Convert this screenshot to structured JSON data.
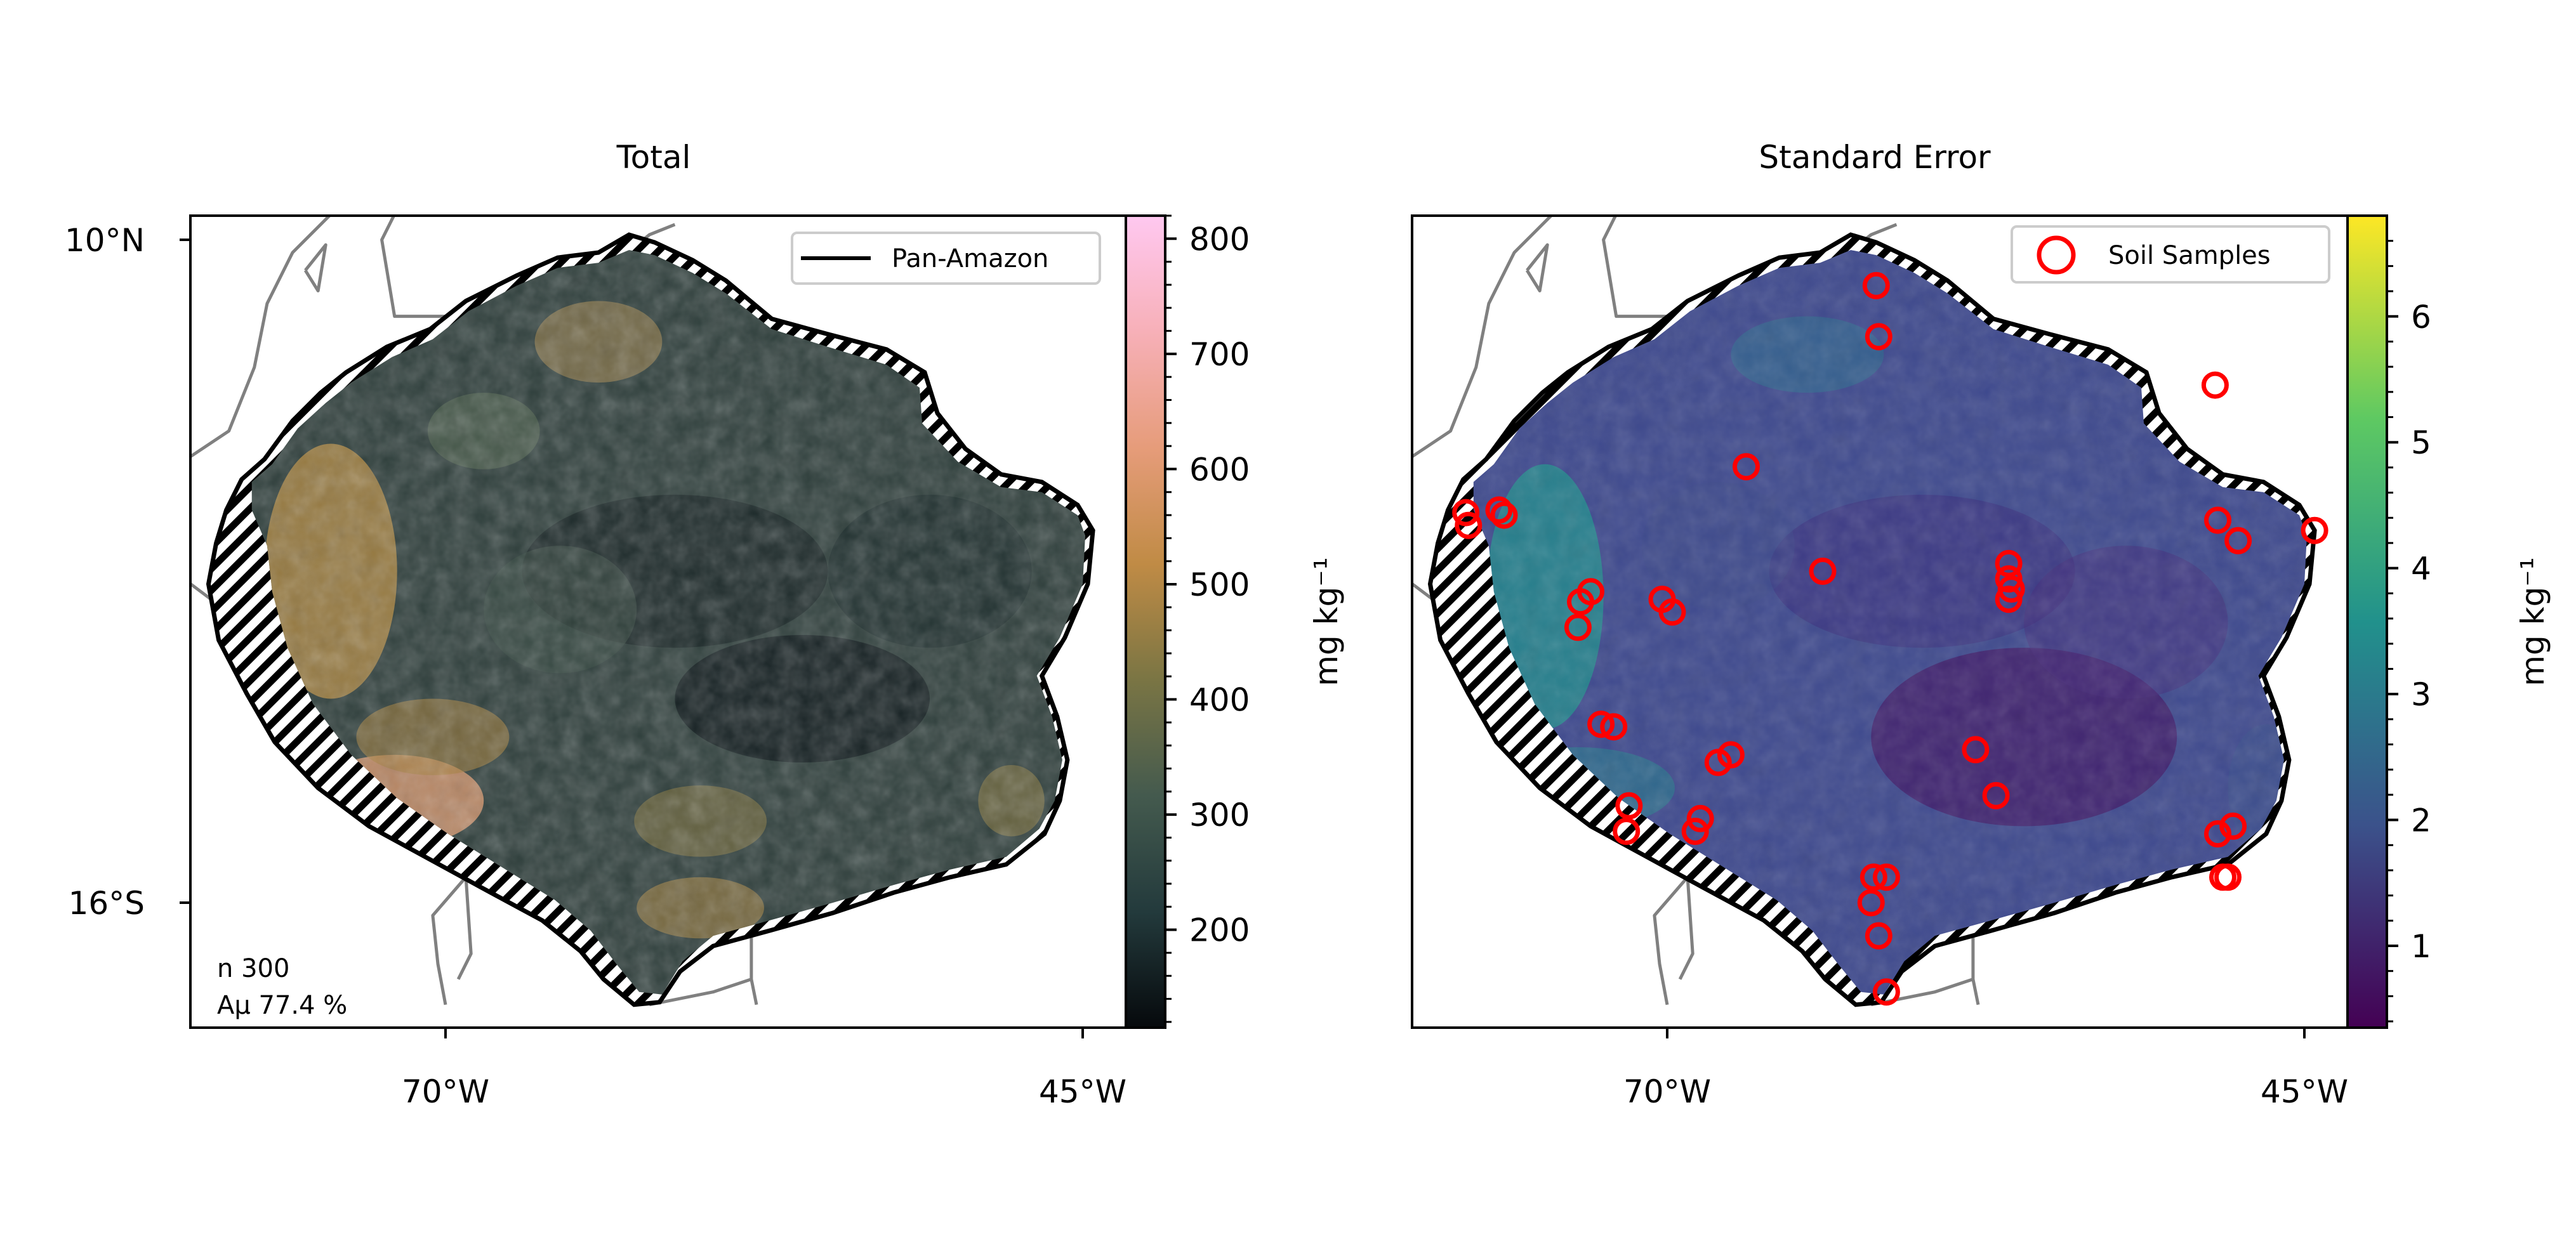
{
  "chart_data": [
    {
      "type": "heatmap",
      "title": "Total",
      "x_ticks": [
        "70°W",
        "45°W"
      ],
      "y_ticks": [
        "10°N",
        "16°S"
      ],
      "colorbar": {
        "label": "mg kg⁻¹",
        "ticks": [
          200,
          300,
          400,
          500,
          600,
          700,
          800
        ],
        "range": [
          115,
          820
        ],
        "colors": [
          "#06090c",
          "#233a3c",
          "#445a4e",
          "#7a7544",
          "#c08b45",
          "#e69c7a",
          "#f7b0b8",
          "#ffc8f0"
        ]
      },
      "legend": {
        "position": "top-right",
        "entries": [
          {
            "label": "Pan-Amazon",
            "color": "#000000"
          }
        ]
      },
      "annotations": [
        "n 300",
        "Aµ 77.4 %"
      ],
      "hatch_meaning": "masked area",
      "grid": false
    },
    {
      "type": "heatmap",
      "title": "Standard Error",
      "x_ticks": [
        "70°W",
        "45°W"
      ],
      "colorbar": {
        "label": "mg kg⁻¹",
        "ticks": [
          1,
          2,
          3,
          4,
          5,
          6
        ],
        "range": [
          0.35,
          6.8
        ],
        "colors": [
          "#440154",
          "#3b528b",
          "#21918c",
          "#5ec962",
          "#fde725"
        ]
      },
      "legend": {
        "position": "top-right",
        "entries": [
          {
            "label": "Soil Samples",
            "color": "#ff0000"
          }
        ]
      },
      "soil_samples": [
        [
          -61.8,
          8.2
        ],
        [
          -61.7,
          6.2
        ],
        [
          -48.5,
          4.3
        ],
        [
          -66.9,
          1.1
        ],
        [
          -77.9,
          -0.7
        ],
        [
          -77.8,
          -1.2
        ],
        [
          -76.6,
          -0.6
        ],
        [
          -76.4,
          -0.8
        ],
        [
          -63.9,
          -3.0
        ],
        [
          -56.6,
          -2.7
        ],
        [
          -56.6,
          -3.3
        ],
        [
          -56.5,
          -3.7
        ],
        [
          -56.6,
          -4.1
        ],
        [
          -48.4,
          -1.0
        ],
        [
          -47.6,
          -1.8
        ],
        [
          -44.6,
          -1.4
        ],
        [
          -70.2,
          -4.1
        ],
        [
          -69.8,
          -4.6
        ],
        [
          -73.4,
          -4.2
        ],
        [
          -73.0,
          -3.8
        ],
        [
          -73.5,
          -5.2
        ],
        [
          -72.6,
          -9.0
        ],
        [
          -72.1,
          -9.1
        ],
        [
          -67.5,
          -10.2
        ],
        [
          -68.0,
          -10.5
        ],
        [
          -57.9,
          -10.0
        ],
        [
          -57.1,
          -11.8
        ],
        [
          -71.5,
          -12.2
        ],
        [
          -71.6,
          -13.2
        ],
        [
          -68.7,
          -12.7
        ],
        [
          -68.9,
          -13.2
        ],
        [
          -47.8,
          -13.0
        ],
        [
          -48.4,
          -13.3
        ],
        [
          -48.0,
          -15.0
        ],
        [
          -48.2,
          -15.0
        ],
        [
          -61.9,
          -15.0
        ],
        [
          -61.4,
          -15.0
        ],
        [
          -62.0,
          -16.0
        ],
        [
          -61.7,
          -17.3
        ],
        [
          -61.4,
          -19.5
        ]
      ],
      "grid": false
    }
  ]
}
